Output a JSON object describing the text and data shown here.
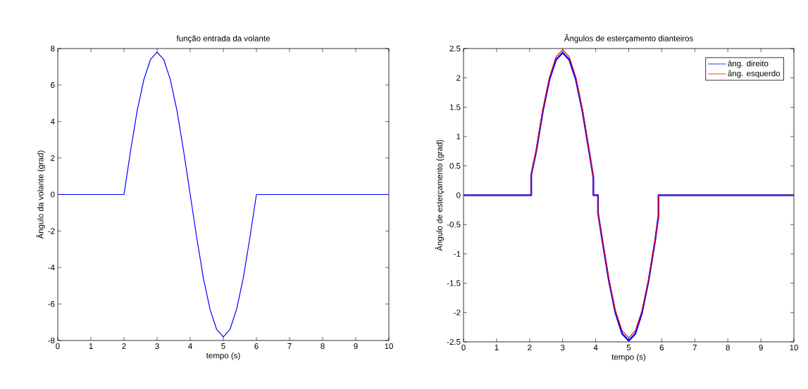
{
  "chart_data": [
    {
      "type": "line",
      "title": "função entrada da volante",
      "xlabel": "tempo (s)",
      "ylabel": "Ângulo da volante (grad)",
      "xlim": [
        0,
        10
      ],
      "ylim": [
        -8,
        8
      ],
      "xticks": [
        0,
        1,
        2,
        3,
        4,
        5,
        6,
        7,
        8,
        9,
        10
      ],
      "yticks": [
        -8,
        -6,
        -4,
        -2,
        0,
        2,
        4,
        6,
        8
      ],
      "grid": false,
      "legend": false,
      "series": [
        {
          "color": "#0000ff",
          "x": [
            0,
            2,
            2.2,
            2.4,
            2.6,
            2.8,
            3,
            3.2,
            3.4,
            3.6,
            3.8,
            4,
            4.2,
            4.4,
            4.6,
            4.8,
            5,
            5.2,
            5.4,
            5.6,
            5.8,
            6,
            10
          ],
          "values": [
            0,
            0,
            2.4,
            4.6,
            6.3,
            7.4,
            7.8,
            7.4,
            6.3,
            4.6,
            2.4,
            0,
            -2.4,
            -4.6,
            -6.3,
            -7.4,
            -7.8,
            -7.4,
            -6.3,
            -4.6,
            -2.4,
            0,
            0
          ]
        }
      ]
    },
    {
      "type": "line",
      "title": "Ângulos de esterçamento dianteiros",
      "xlabel": "tempo (s)",
      "ylabel": "Ângulo de esterçamento (grad)",
      "xlim": [
        0,
        10
      ],
      "ylim": [
        -2.5,
        2.5
      ],
      "xticks": [
        0,
        1,
        2,
        3,
        4,
        5,
        6,
        7,
        8,
        9,
        10
      ],
      "yticks": [
        -2.5,
        -2,
        -1.5,
        -1,
        -0.5,
        0,
        0.5,
        1,
        1.5,
        2,
        2.5
      ],
      "grid": false,
      "legend": "top right",
      "series": [
        {
          "name": "âng. direito",
          "color": "#0000ff",
          "x": [
            0,
            2.05,
            2.05,
            2.2,
            2.4,
            2.6,
            2.8,
            3,
            3.2,
            3.4,
            3.6,
            3.8,
            3.93,
            3.93,
            4.07,
            4.07,
            4.2,
            4.4,
            4.6,
            4.8,
            5,
            5.2,
            5.4,
            5.6,
            5.8,
            5.9,
            5.9,
            10
          ],
          "values": [
            0,
            0,
            0.35,
            0.75,
            1.43,
            1.97,
            2.31,
            2.43,
            2.31,
            1.97,
            1.43,
            0.75,
            0.3,
            0,
            0,
            -0.3,
            -0.77,
            -1.46,
            -2.01,
            -2.36,
            -2.48,
            -2.36,
            -2.01,
            -1.46,
            -0.77,
            -0.35,
            0,
            0
          ]
        },
        {
          "name": "âng. esquerdo",
          "color": "#ff0000",
          "x": [
            0,
            2.05,
            2.05,
            2.2,
            2.4,
            2.6,
            2.8,
            3,
            3.2,
            3.4,
            3.6,
            3.8,
            3.93,
            3.93,
            4.07,
            4.07,
            4.2,
            4.4,
            4.6,
            4.8,
            5,
            5.2,
            5.4,
            5.6,
            5.8,
            5.9,
            5.9,
            10
          ],
          "values": [
            0,
            0,
            0.35,
            0.77,
            1.46,
            2.01,
            2.36,
            2.48,
            2.36,
            2.01,
            1.46,
            0.77,
            0.3,
            0,
            0,
            -0.3,
            -0.75,
            -1.43,
            -1.97,
            -2.31,
            -2.43,
            -2.31,
            -1.97,
            -1.43,
            -0.75,
            -0.35,
            0,
            0
          ]
        }
      ]
    }
  ]
}
